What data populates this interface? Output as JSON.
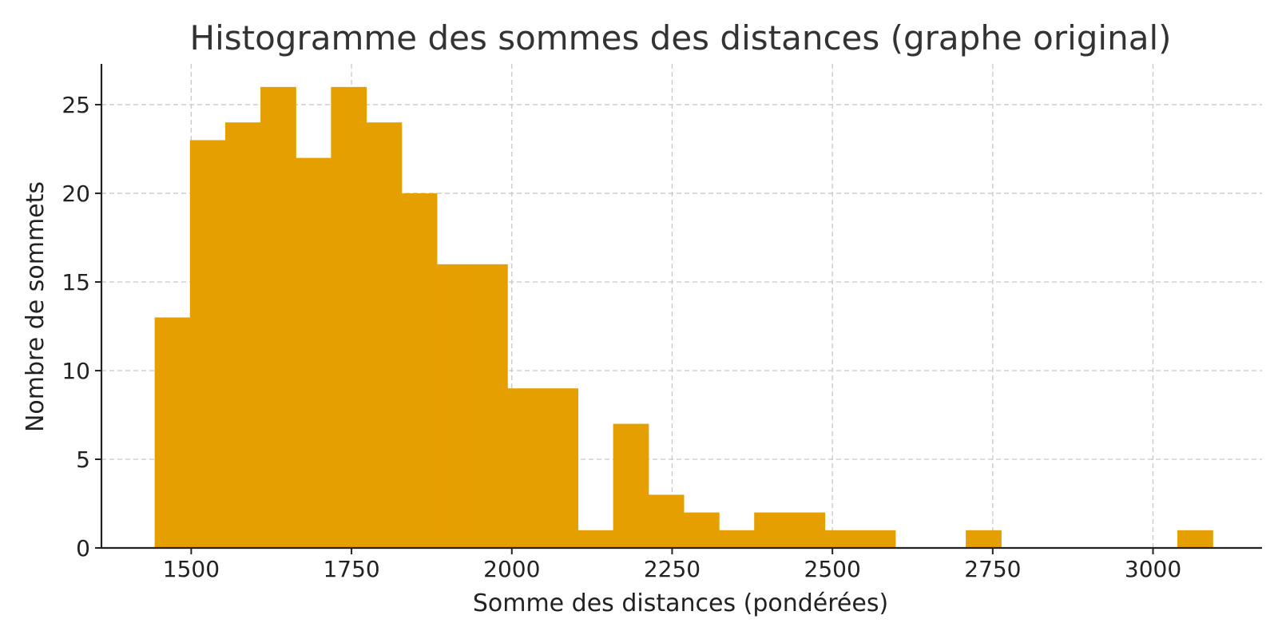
{
  "chart_data": {
    "type": "bar",
    "title": "Histogramme des sommes des distances (graphe original)",
    "xlabel": "Somme des distances (pondérées)",
    "ylabel": "Nombre de sommets",
    "xlim": [
      1360,
      3170
    ],
    "ylim": [
      0,
      27.3
    ],
    "xticks": [
      1500,
      1750,
      2000,
      2250,
      2500,
      2750,
      3000
    ],
    "yticks": [
      0,
      5,
      10,
      15,
      20,
      25
    ],
    "grid": true,
    "bar_color": "#e69f00",
    "bins": [
      {
        "x0": 1443,
        "x1": 1498,
        "count": 13
      },
      {
        "x0": 1498,
        "x1": 1553,
        "count": 23
      },
      {
        "x0": 1553,
        "x1": 1608,
        "count": 24
      },
      {
        "x0": 1608,
        "x1": 1663,
        "count": 26
      },
      {
        "x0": 1663,
        "x1": 1718,
        "count": 22
      },
      {
        "x0": 1718,
        "x1": 1773,
        "count": 26
      },
      {
        "x0": 1773,
        "x1": 1828,
        "count": 24
      },
      {
        "x0": 1828,
        "x1": 1883,
        "count": 20
      },
      {
        "x0": 1883,
        "x1": 1938,
        "count": 16
      },
      {
        "x0": 1938,
        "x1": 1993,
        "count": 16
      },
      {
        "x0": 1993,
        "x1": 2048,
        "count": 9
      },
      {
        "x0": 2048,
        "x1": 2103,
        "count": 9
      },
      {
        "x0": 2103,
        "x1": 2158,
        "count": 1
      },
      {
        "x0": 2158,
        "x1": 2213,
        "count": 7
      },
      {
        "x0": 2213,
        "x1": 2268,
        "count": 3
      },
      {
        "x0": 2268,
        "x1": 2323,
        "count": 2
      },
      {
        "x0": 2323,
        "x1": 2378,
        "count": 1
      },
      {
        "x0": 2378,
        "x1": 2433,
        "count": 2
      },
      {
        "x0": 2433,
        "x1": 2488,
        "count": 2
      },
      {
        "x0": 2488,
        "x1": 2543,
        "count": 1
      },
      {
        "x0": 2543,
        "x1": 2598,
        "count": 1
      },
      {
        "x0": 2598,
        "x1": 2653,
        "count": 0
      },
      {
        "x0": 2653,
        "x1": 2708,
        "count": 0
      },
      {
        "x0": 2708,
        "x1": 2763,
        "count": 1
      },
      {
        "x0": 2763,
        "x1": 2818,
        "count": 0
      },
      {
        "x0": 2818,
        "x1": 2873,
        "count": 0
      },
      {
        "x0": 2873,
        "x1": 2928,
        "count": 0
      },
      {
        "x0": 2928,
        "x1": 2983,
        "count": 0
      },
      {
        "x0": 2983,
        "x1": 3038,
        "count": 0
      },
      {
        "x0": 3038,
        "x1": 3093,
        "count": 1
      }
    ]
  }
}
